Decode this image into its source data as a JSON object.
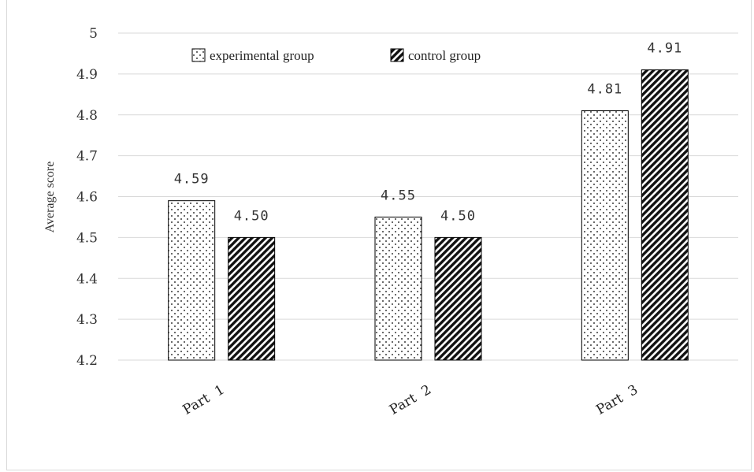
{
  "chart_data": {
    "type": "bar",
    "categories": [
      "Part  1",
      "Part  2",
      "Part  3"
    ],
    "series": [
      {
        "name": "experimental group",
        "values": [
          4.59,
          4.55,
          4.81
        ],
        "labels": [
          "4.59",
          "4.55",
          "4.81"
        ],
        "pattern": "dots"
      },
      {
        "name": "control group",
        "values": [
          4.5,
          4.5,
          4.91
        ],
        "labels": [
          "4.50",
          "4.50",
          "4.91"
        ],
        "pattern": "hatch"
      }
    ],
    "ylabel": "Average score",
    "ylim": [
      4.2,
      5.0
    ],
    "yticks": [
      "4.2",
      "4.3",
      "4.4",
      "4.5",
      "4.6",
      "4.7",
      "4.8",
      "4.9",
      "5"
    ],
    "grid": true,
    "legend_position": "top-left",
    "colors": {
      "bar_stroke": "#000000",
      "grid": "#d9d9d9",
      "dot_fill": "#000000",
      "hatch_fill": "#111111"
    }
  }
}
